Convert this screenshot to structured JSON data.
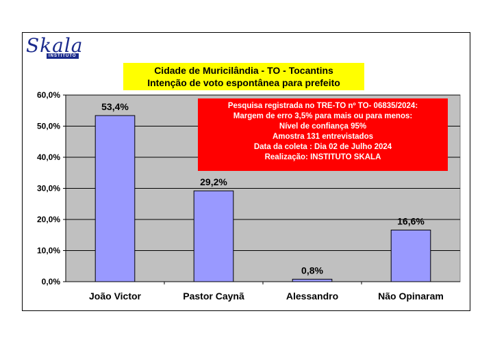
{
  "logo": {
    "word": "Skala",
    "tag": "INSTITUTO"
  },
  "title_box": {
    "line1": "Cidade de Muricilândia - TO - Tocantins",
    "line2": "Intenção de voto espontânea para prefeito"
  },
  "info_box": {
    "lines": [
      "Pesquisa registrada no TRE-TO nº TO- 06835/2024:",
      "Margem de erro 3,5% para mais ou para menos:",
      "Nível de confiança 95%",
      "Amostra 131 entrevistados",
      "Data da coleta : Dia 02 de Julho 2024",
      "Realização: INSTITUTO SKALA"
    ]
  },
  "colors": {
    "plot_bg": "#c0c0c0",
    "bar_fill": "#9999ff",
    "title_bg": "#ffff00",
    "info_bg": "#ff0000",
    "logo": "#1a2a8c"
  },
  "chart_data": {
    "type": "bar",
    "title": "Cidade de Muricilândia - TO - Tocantins / Intenção de voto espontânea para prefeito",
    "categories": [
      "João Victor",
      "Pastor Caynã",
      "Alessandro",
      "Não Opinaram"
    ],
    "values": [
      53.4,
      29.2,
      0.8,
      16.6
    ],
    "value_labels": [
      "53,4%",
      "29,2%",
      "0,8%",
      "16,6%"
    ],
    "y_ticks": [
      "0,0%",
      "10,0%",
      "20,0%",
      "30,0%",
      "40,0%",
      "50,0%",
      "60,0%"
    ],
    "ylim": [
      0,
      60
    ],
    "grid": true,
    "legend": "none"
  }
}
